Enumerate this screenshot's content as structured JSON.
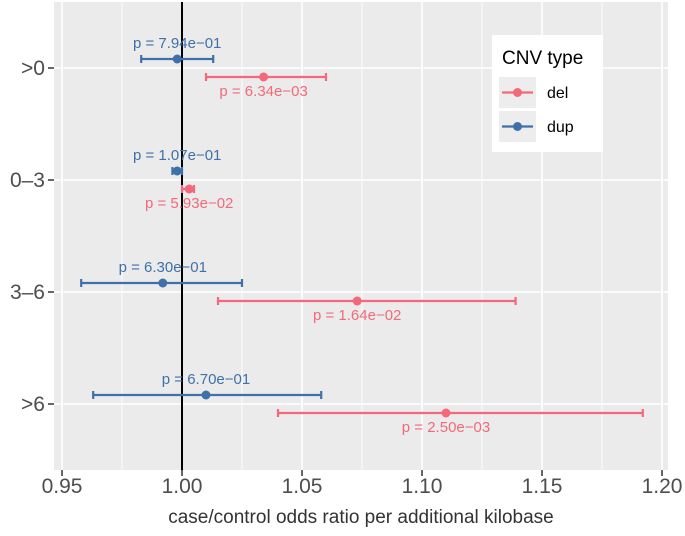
{
  "figure": {
    "background": "#FFFFFF",
    "panel_background": "#EBEBEB",
    "grid_color": "#FFFFFF",
    "axis_text_color": "#4D4D4D",
    "tick_color": "#333333",
    "reference_line_color": "#000000"
  },
  "legend": {
    "title": "CNV type",
    "position": "top-right-inside",
    "key_background": "#EDEDED",
    "items": [
      {
        "label": "del",
        "color": "#F3697A"
      },
      {
        "label": "dup",
        "color": "#3E71A9"
      }
    ]
  },
  "chart_data": {
    "type": "scatter",
    "subtype": "forest-plot-odds-ratios-with-95ci",
    "title": "",
    "xlabel": "case/control odds ratio per additional kilobase",
    "ylabel": "",
    "categories": [
      ">0",
      "0–3",
      "3–6",
      ">6"
    ],
    "xlim": [
      0.9467,
      1.2025
    ],
    "x_major_ticks": [
      "0.95",
      "1.00",
      "1.05",
      "1.10",
      "1.15",
      "1.20"
    ],
    "x_major_tick_values": [
      0.95,
      1.0,
      1.05,
      1.1,
      1.15,
      1.2
    ],
    "x_minor_tick_values": [
      0.975,
      1.025,
      1.075,
      1.125,
      1.175
    ],
    "reference_line_x": 1.0,
    "grid": true,
    "legend_title": "CNV type",
    "series": [
      {
        "name": "del",
        "color": "#F3697A",
        "points": [
          {
            "category": ">0",
            "or": 1.034,
            "ci_low": 1.01,
            "ci_high": 1.06,
            "p_label": "p = 6.34e−03"
          },
          {
            "category": "0–3",
            "or": 1.003,
            "ci_low": 1.0,
            "ci_high": 1.005,
            "p_label": "p = 5.93e−02"
          },
          {
            "category": "3–6",
            "or": 1.073,
            "ci_low": 1.015,
            "ci_high": 1.139,
            "p_label": "p = 1.64e−02"
          },
          {
            "category": ">6",
            "or": 1.11,
            "ci_low": 1.04,
            "ci_high": 1.192,
            "p_label": "p = 2.50e−03"
          }
        ]
      },
      {
        "name": "dup",
        "color": "#3E71A9",
        "points": [
          {
            "category": ">0",
            "or": 0.998,
            "ci_low": 0.983,
            "ci_high": 1.013,
            "p_label": "p = 7.94e−01"
          },
          {
            "category": "0–3",
            "or": 0.998,
            "ci_low": 0.996,
            "ci_high": 1.0,
            "p_label": "p = 1.07e−01"
          },
          {
            "category": "3–6",
            "or": 0.992,
            "ci_low": 0.958,
            "ci_high": 1.025,
            "p_label": "p = 6.30e−01"
          },
          {
            "category": ">6",
            "or": 1.01,
            "ci_low": 0.963,
            "ci_high": 1.058,
            "p_label": "p = 6.70e−01"
          }
        ]
      }
    ]
  }
}
